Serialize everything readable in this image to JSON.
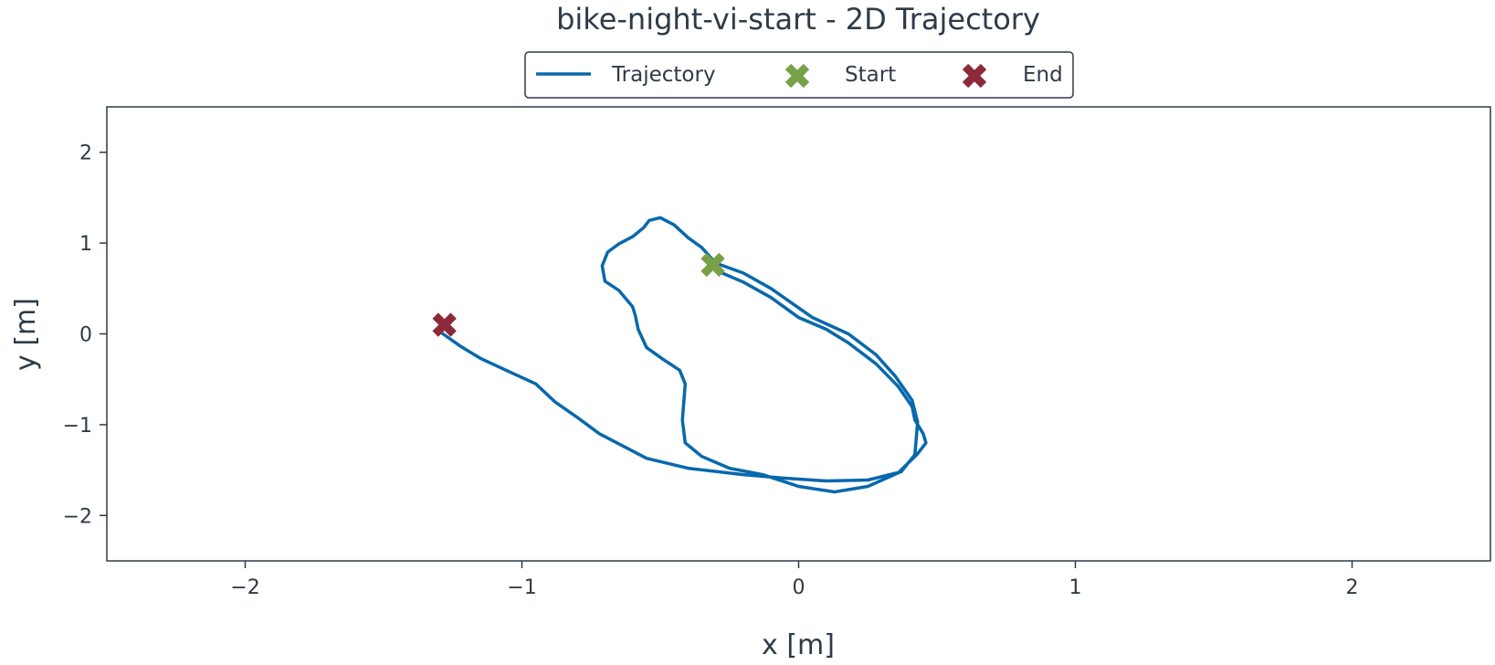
{
  "chart_data": {
    "type": "line",
    "title": "bike-night-vi-start - 2D Trajectory",
    "xlabel": "x [m]",
    "ylabel": "y [m]",
    "xlim": [
      -2.5,
      2.5
    ],
    "ylim": [
      -2.5,
      2.5
    ],
    "xticks": [
      -2,
      -1,
      0,
      1,
      2
    ],
    "yticks": [
      -2,
      -1,
      0,
      1,
      2
    ],
    "xtick_labels": [
      "−2",
      "−1",
      "0",
      "1",
      "2"
    ],
    "ytick_labels": [
      "−2",
      "−1",
      "0",
      "1",
      "2"
    ],
    "grid": false,
    "legend": {
      "position": "top-center",
      "entries": [
        {
          "label": "Trajectory",
          "marker": "line",
          "color": "#0868ac"
        },
        {
          "label": "Start",
          "marker": "x",
          "color": "#78a046"
        },
        {
          "label": "End",
          "marker": "x",
          "color": "#8c2a3a"
        }
      ]
    },
    "series": [
      {
        "name": "Trajectory",
        "color": "#0868ac",
        "x": [
          -0.3,
          -0.2,
          -0.1,
          0.0,
          0.1,
          0.18,
          0.28,
          0.36,
          0.41,
          0.42,
          0.45,
          0.46,
          0.43,
          0.36,
          0.25,
          0.13,
          0.0,
          -0.13,
          -0.25,
          -0.35,
          -0.41,
          -0.42,
          -0.41,
          -0.43,
          -0.49,
          -0.55,
          -0.58,
          -0.59,
          -0.6,
          -0.65,
          -0.7,
          -0.71,
          -0.69,
          -0.65,
          -0.6,
          -0.56,
          -0.54,
          -0.5,
          -0.45,
          -0.4,
          -0.35,
          -0.3,
          -0.2,
          -0.1,
          -0.03,
          0.05,
          0.18,
          0.28,
          0.35,
          0.41,
          0.43,
          0.42,
          0.37,
          0.25,
          0.1,
          -0.05,
          -0.2,
          -0.4,
          -0.55,
          -0.72,
          -0.8,
          -0.88,
          -0.95,
          -1.05,
          -1.15,
          -1.22,
          -1.29
        ],
        "y": [
          0.7,
          0.57,
          0.4,
          0.18,
          0.05,
          -0.1,
          -0.33,
          -0.58,
          -0.8,
          -0.95,
          -1.1,
          -1.2,
          -1.32,
          -1.53,
          -1.68,
          -1.74,
          -1.68,
          -1.55,
          -1.48,
          -1.35,
          -1.2,
          -0.95,
          -0.55,
          -0.4,
          -0.28,
          -0.15,
          0.05,
          0.2,
          0.3,
          0.48,
          0.58,
          0.75,
          0.9,
          0.99,
          1.07,
          1.17,
          1.25,
          1.28,
          1.2,
          1.06,
          0.95,
          0.78,
          0.67,
          0.5,
          0.35,
          0.18,
          0.0,
          -0.23,
          -0.47,
          -0.73,
          -0.97,
          -1.33,
          -1.52,
          -1.61,
          -1.62,
          -1.59,
          -1.55,
          -1.48,
          -1.37,
          -1.1,
          -0.92,
          -0.75,
          -0.55,
          -0.41,
          -0.27,
          -0.14,
          0.01
        ]
      }
    ],
    "markers": [
      {
        "label": "Start",
        "x": -0.31,
        "y": 0.76,
        "color": "#78a046"
      },
      {
        "label": "End",
        "x": -1.28,
        "y": 0.1,
        "color": "#8c2a3a"
      }
    ]
  }
}
